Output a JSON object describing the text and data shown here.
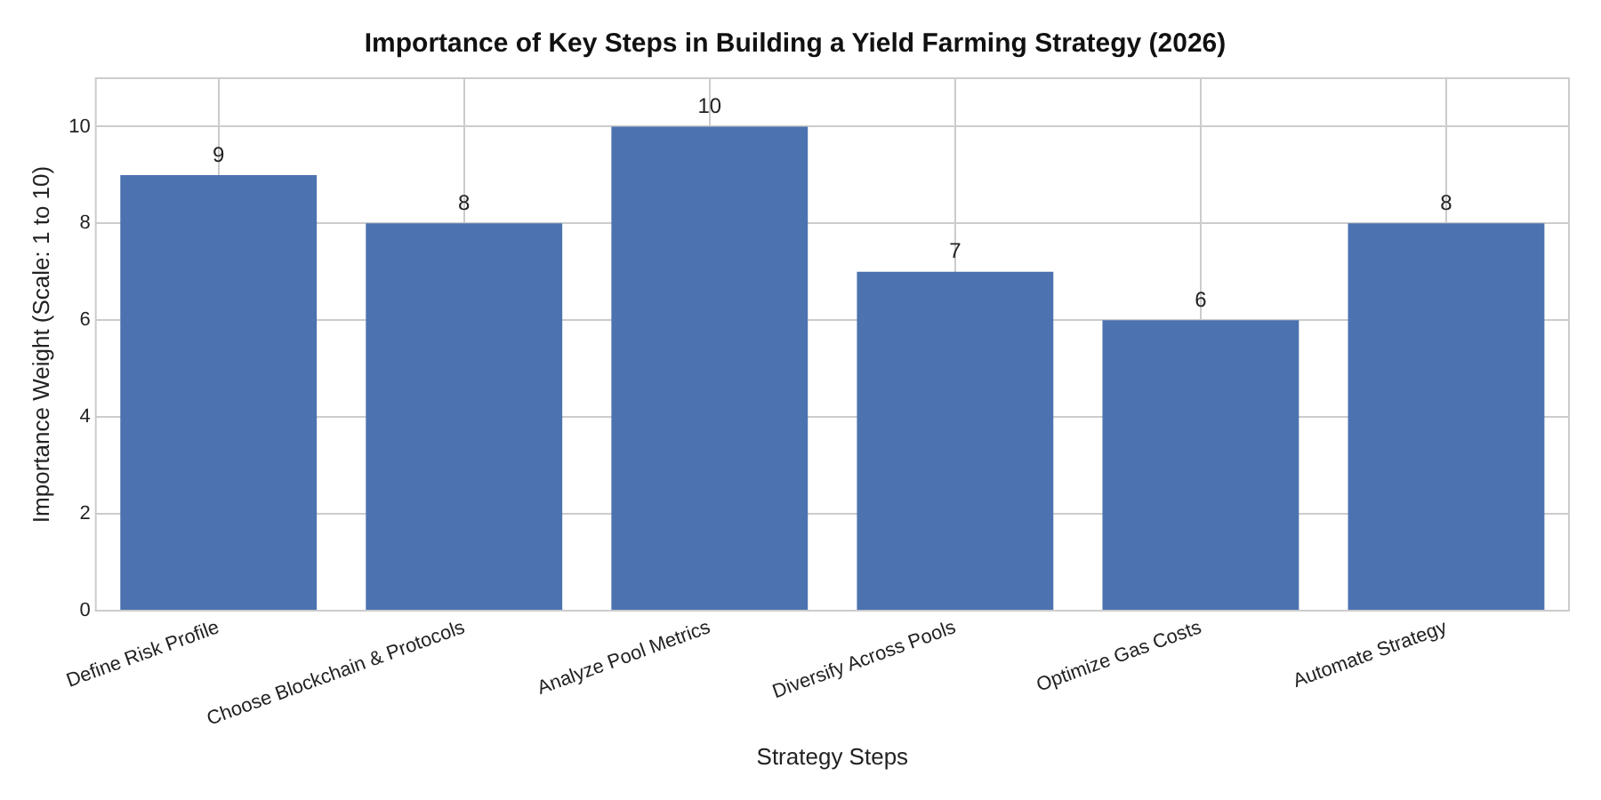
{
  "chart_data": {
    "type": "bar",
    "title": "Importance of Key Steps in Building a Yield Farming Strategy (2026)",
    "xlabel": "Strategy Steps",
    "ylabel": "Importance Weight (Scale: 1 to 10)",
    "categories": [
      "Define Risk Profile",
      "Choose Blockchain & Protocols",
      "Analyze Pool Metrics",
      "Diversify Across Pools",
      "Optimize Gas Costs",
      "Automate Strategy"
    ],
    "values": [
      9,
      8,
      10,
      7,
      6,
      8
    ],
    "color": "#4c72b0",
    "ylim": [
      0,
      11
    ],
    "yticks": [
      0,
      2,
      4,
      6,
      8,
      10
    ],
    "grid": true,
    "data_labels": true
  }
}
